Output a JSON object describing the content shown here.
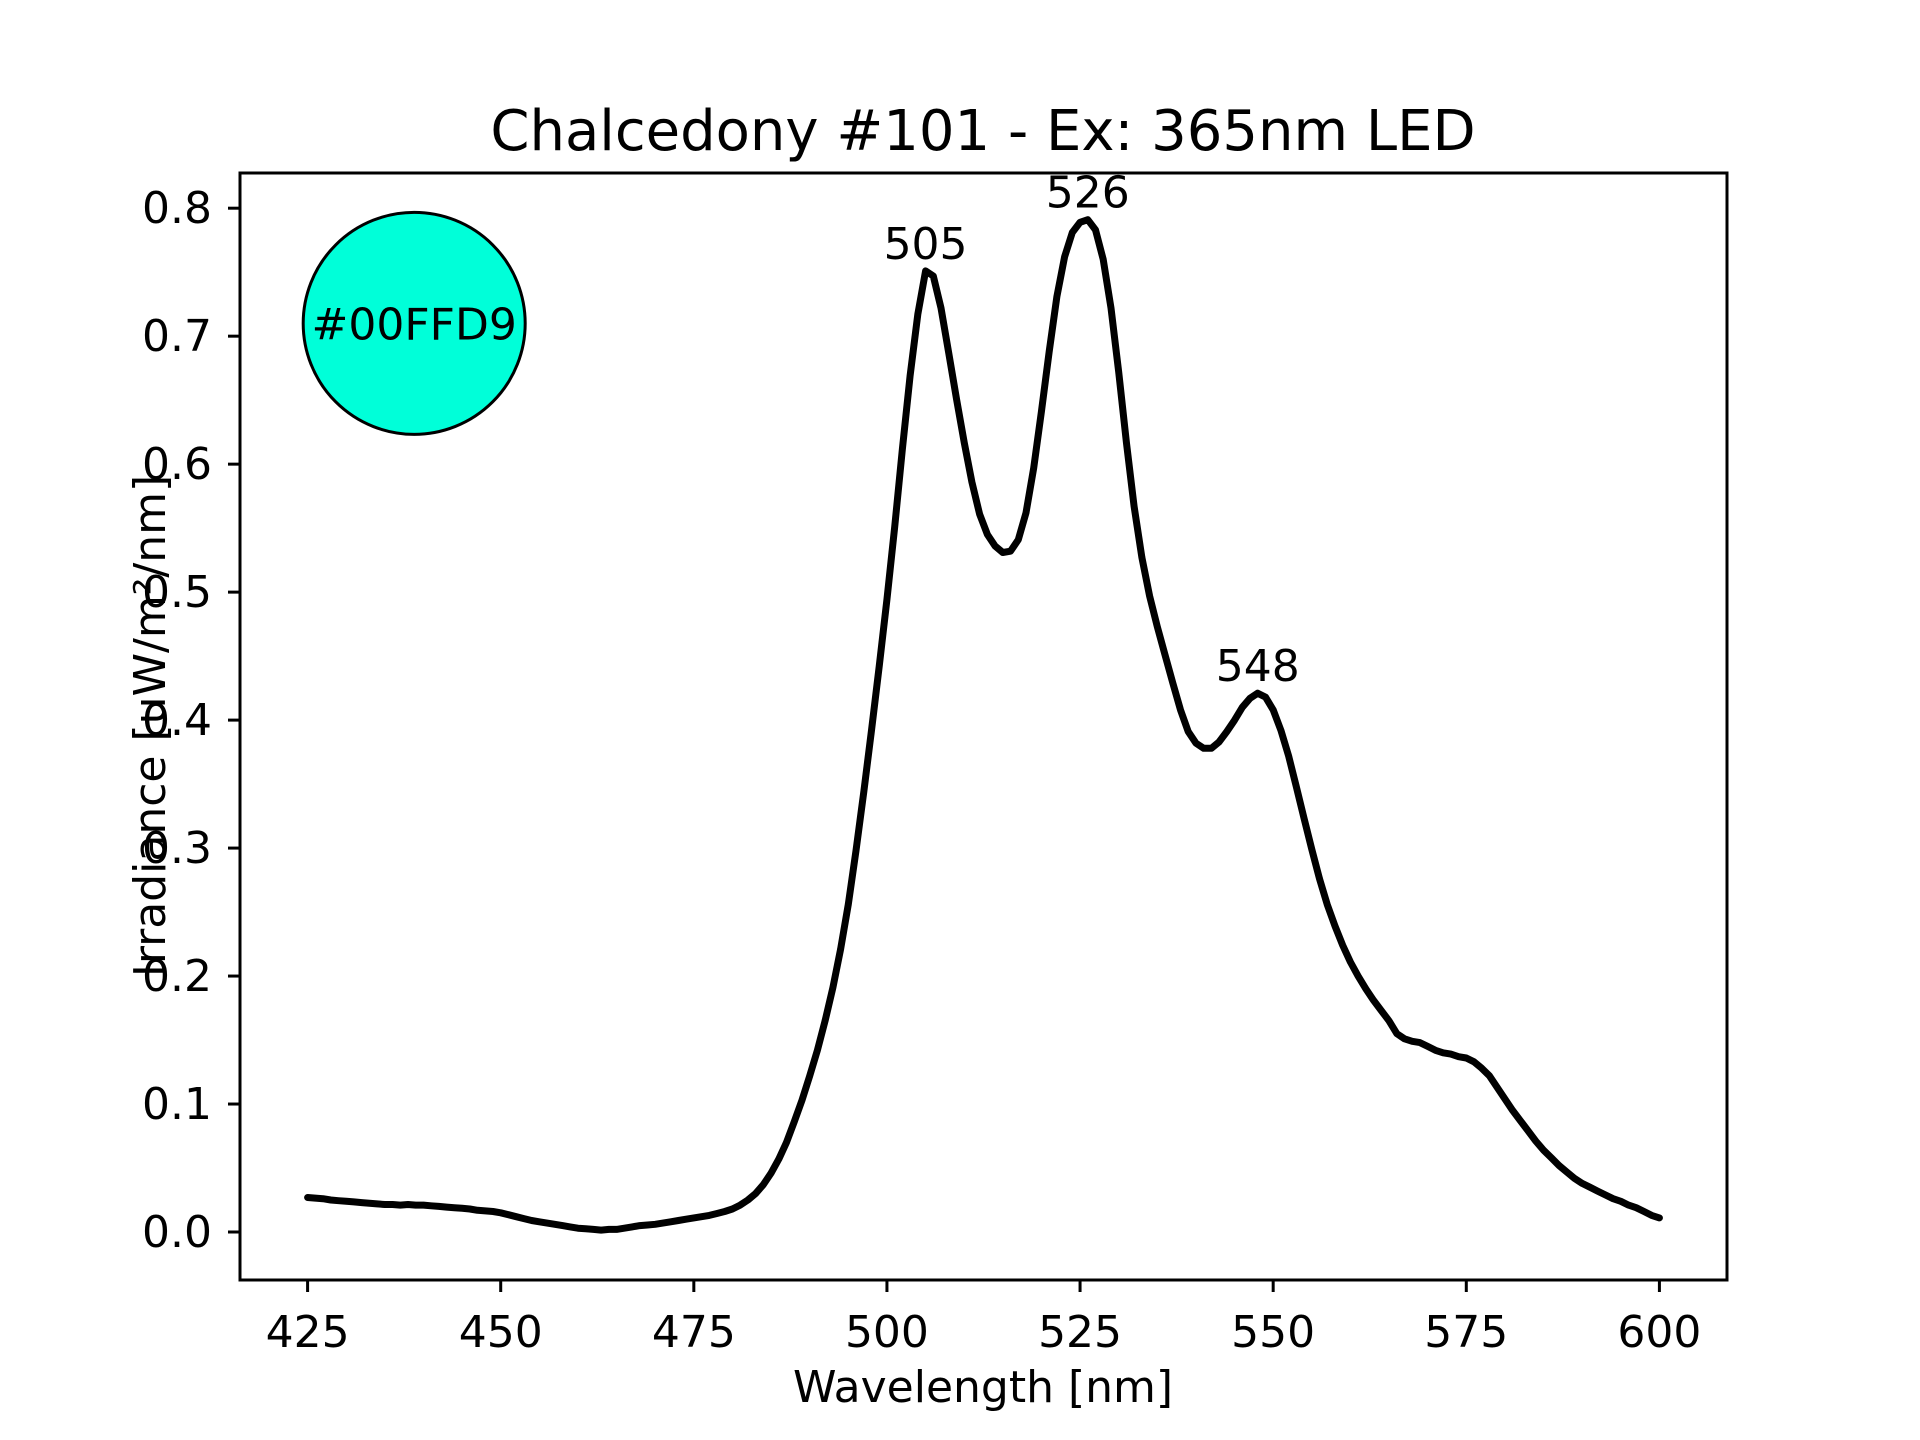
{
  "chart_data": {
    "type": "line",
    "title": "Chalcedony #101 - Ex: 365nm LED",
    "xlabel": "Wavelength [nm]",
    "ylabel": "Irradiance [uW/m²/nm]",
    "xlim": [
      416.25,
      608.75
    ],
    "ylim": [
      -0.0375,
      0.8275
    ],
    "grid": false,
    "legend": "none",
    "xticks": [
      {
        "v": 425,
        "label": "425"
      },
      {
        "v": 450,
        "label": "450"
      },
      {
        "v": 475,
        "label": "475"
      },
      {
        "v": 500,
        "label": "500"
      },
      {
        "v": 525,
        "label": "525"
      },
      {
        "v": 550,
        "label": "550"
      },
      {
        "v": 575,
        "label": "575"
      },
      {
        "v": 600,
        "label": "600"
      }
    ],
    "yticks": [
      {
        "v": 0.0,
        "label": "0.0"
      },
      {
        "v": 0.1,
        "label": "0.1"
      },
      {
        "v": 0.2,
        "label": "0.2"
      },
      {
        "v": 0.3,
        "label": "0.3"
      },
      {
        "v": 0.4,
        "label": "0.4"
      },
      {
        "v": 0.5,
        "label": "0.5"
      },
      {
        "v": 0.6,
        "label": "0.6"
      },
      {
        "v": 0.7,
        "label": "0.7"
      },
      {
        "v": 0.8,
        "label": "0.8"
      }
    ],
    "series": [
      {
        "name": "emission-spectrum",
        "color": "#000000",
        "x": [
          425,
          426,
          427,
          428,
          429,
          430,
          431,
          432,
          433,
          434,
          435,
          436,
          437,
          438,
          439,
          440,
          441,
          442,
          443,
          444,
          445,
          446,
          447,
          448,
          449,
          450,
          451,
          452,
          453,
          454,
          455,
          456,
          457,
          458,
          459,
          460,
          461,
          462,
          463,
          464,
          465,
          466,
          467,
          468,
          469,
          470,
          471,
          472,
          473,
          474,
          475,
          476,
          477,
          478,
          479,
          480,
          481,
          482,
          483,
          484,
          485,
          486,
          487,
          488,
          489,
          490,
          491,
          492,
          493,
          494,
          495,
          496,
          497,
          498,
          499,
          500,
          501,
          502,
          503,
          504,
          505,
          506,
          507,
          508,
          509,
          510,
          511,
          512,
          513,
          514,
          515,
          516,
          517,
          518,
          519,
          520,
          521,
          522,
          523,
          524,
          525,
          526,
          527,
          528,
          529,
          530,
          531,
          532,
          533,
          534,
          535,
          536,
          537,
          538,
          539,
          540,
          541,
          542,
          543,
          544,
          545,
          546,
          547,
          548,
          549,
          550,
          551,
          552,
          553,
          554,
          555,
          556,
          557,
          558,
          559,
          560,
          561,
          562,
          563,
          564,
          565,
          566,
          567,
          568,
          569,
          570,
          571,
          572,
          573,
          574,
          575,
          576,
          577,
          578,
          579,
          580,
          581,
          582,
          583,
          584,
          585,
          586,
          587,
          588,
          589,
          590,
          591,
          592,
          593,
          594,
          595,
          596,
          597,
          598,
          599,
          600
        ],
        "y": [
          0.027,
          0.0265,
          0.026,
          0.025,
          0.0245,
          0.024,
          0.0235,
          0.023,
          0.0225,
          0.022,
          0.0215,
          0.0215,
          0.021,
          0.0215,
          0.021,
          0.021,
          0.0205,
          0.02,
          0.0195,
          0.019,
          0.0185,
          0.018,
          0.017,
          0.0165,
          0.016,
          0.015,
          0.0135,
          0.012,
          0.0105,
          0.009,
          0.008,
          0.007,
          0.006,
          0.005,
          0.004,
          0.003,
          0.0025,
          0.002,
          0.0015,
          0.002,
          0.002,
          0.003,
          0.004,
          0.005,
          0.0055,
          0.006,
          0.007,
          0.008,
          0.009,
          0.01,
          0.011,
          0.012,
          0.013,
          0.0145,
          0.016,
          0.018,
          0.021,
          0.025,
          0.03,
          0.037,
          0.046,
          0.057,
          0.07,
          0.086,
          0.103,
          0.122,
          0.142,
          0.165,
          0.191,
          0.221,
          0.256,
          0.298,
          0.344,
          0.392,
          0.442,
          0.494,
          0.551,
          0.612,
          0.669,
          0.717,
          0.751,
          0.747,
          0.722,
          0.687,
          0.651,
          0.617,
          0.586,
          0.561,
          0.545,
          0.536,
          0.531,
          0.532,
          0.541,
          0.562,
          0.597,
          0.641,
          0.688,
          0.731,
          0.762,
          0.781,
          0.789,
          0.791,
          0.783,
          0.76,
          0.722,
          0.672,
          0.617,
          0.567,
          0.527,
          0.497,
          0.473,
          0.451,
          0.429,
          0.408,
          0.391,
          0.382,
          0.378,
          0.378,
          0.383,
          0.391,
          0.4,
          0.41,
          0.417,
          0.421,
          0.418,
          0.408,
          0.392,
          0.372,
          0.348,
          0.323,
          0.299,
          0.276,
          0.256,
          0.239,
          0.224,
          0.211,
          0.2,
          0.19,
          0.181,
          0.173,
          0.165,
          0.155,
          0.151,
          0.149,
          0.148,
          0.145,
          0.142,
          0.14,
          0.139,
          0.137,
          0.136,
          0.133,
          0.128,
          0.122,
          0.113,
          0.104,
          0.095,
          0.087,
          0.079,
          0.071,
          0.064,
          0.058,
          0.052,
          0.047,
          0.042,
          0.038,
          0.035,
          0.032,
          0.029,
          0.026,
          0.024,
          0.021,
          0.019,
          0.016,
          0.013,
          0.011
        ]
      }
    ],
    "annotations": [
      {
        "label": "505",
        "x": 505,
        "y": 0.751
      },
      {
        "label": "526",
        "x": 526,
        "y": 0.791
      },
      {
        "label": "548",
        "x": 548,
        "y": 0.421
      }
    ],
    "swatch": {
      "label": "#00FFD9",
      "color": "#00FFD9",
      "edge_color": "#000000",
      "x": 438.8,
      "y": 0.71,
      "radius_px": 111
    }
  }
}
